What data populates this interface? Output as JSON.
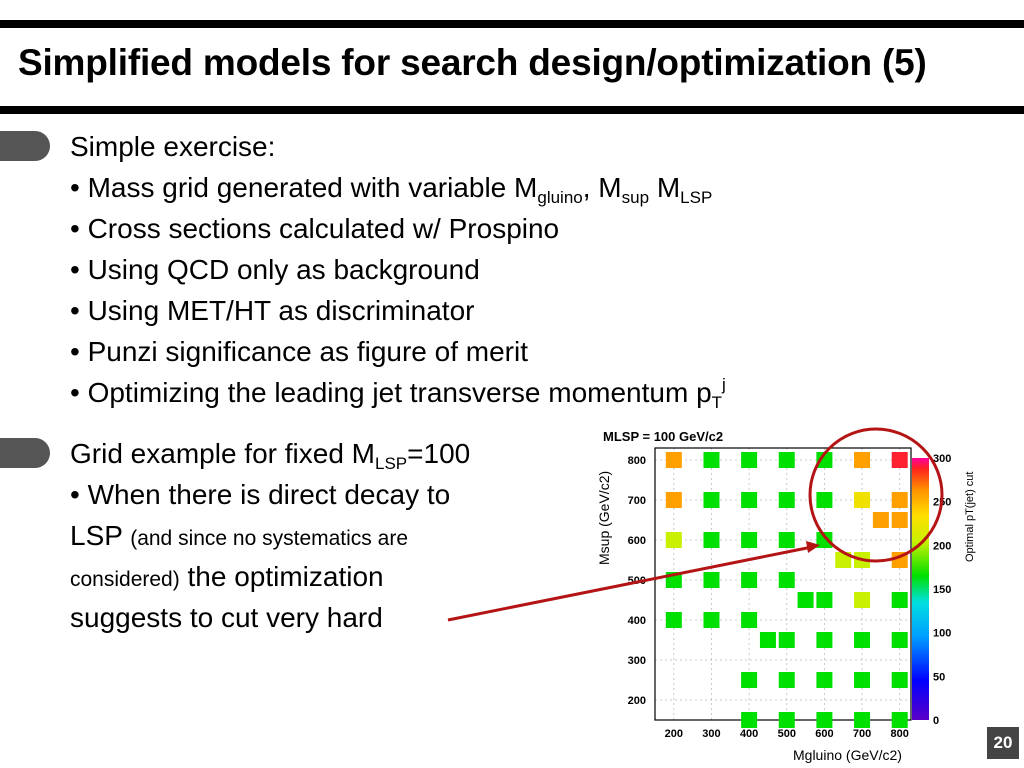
{
  "slide": {
    "title": "Simplified models for search design/optimization (5)",
    "page_number": "20"
  },
  "block1": {
    "heading": "Simple exercise:",
    "bullets": {
      "mass_grid": {
        "text": "• Mass grid generated with variable M",
        "sub1": "gluino",
        "mid": ", M",
        "sub2": "sup",
        "mid2": " M",
        "sub3": "LSP"
      },
      "cross_sections": "• Cross sections calculated w/ Prospino",
      "qcd": "• Using QCD only as background",
      "met_ht": "• Using MET/HT as discriminator",
      "punzi": "• Punzi significance as figure of merit",
      "pt": {
        "text": "• Optimizing the leading jet transverse momentum p",
        "sub": "T",
        "sup": "j"
      }
    }
  },
  "block2": {
    "heading": {
      "text": "Grid example for fixed M",
      "sub": "LSP",
      "tail": "=100"
    },
    "line1": "• When there is direct decay to",
    "line2_main": "LSP ",
    "line2_small": "(and since no systematics are",
    "line3_small": "considered)",
    "line3_main": " the optimization",
    "line4": "suggests to cut very hard"
  },
  "colors": {
    "marker_green": "#00e000",
    "marker_lime": "#c8f000",
    "marker_yellow": "#f0e000",
    "marker_orange": "#ffa000",
    "marker_red": "#ff2030",
    "annotation": "#b41414"
  },
  "chart_data": {
    "type": "heatmap",
    "title": "MLSP = 100 GeV/c2",
    "xlabel": "Mgluino (GeV/c2)",
    "ylabel": "Msup (GeV/c2)",
    "zlabel": "Optimal pT(jet) cut",
    "xlim": [
      150,
      830
    ],
    "ylim": [
      150,
      830
    ],
    "zlim": [
      0,
      300
    ],
    "grid": true,
    "x_ticks": [
      200,
      300,
      400,
      500,
      600,
      700,
      800
    ],
    "y_ticks": [
      200,
      300,
      400,
      500,
      600,
      700,
      800
    ],
    "z_ticks": [
      0,
      50,
      100,
      150,
      200,
      250,
      300
    ],
    "points": [
      {
        "x": 200,
        "y": 800,
        "z": 240
      },
      {
        "x": 300,
        "y": 800,
        "z": 160
      },
      {
        "x": 400,
        "y": 800,
        "z": 160
      },
      {
        "x": 500,
        "y": 800,
        "z": 160
      },
      {
        "x": 600,
        "y": 800,
        "z": 160
      },
      {
        "x": 700,
        "y": 800,
        "z": 240
      },
      {
        "x": 800,
        "y": 800,
        "z": 290
      },
      {
        "x": 200,
        "y": 700,
        "z": 240
      },
      {
        "x": 300,
        "y": 700,
        "z": 160
      },
      {
        "x": 400,
        "y": 700,
        "z": 160
      },
      {
        "x": 500,
        "y": 700,
        "z": 160
      },
      {
        "x": 600,
        "y": 700,
        "z": 160
      },
      {
        "x": 700,
        "y": 700,
        "z": 225
      },
      {
        "x": 800,
        "y": 700,
        "z": 245
      },
      {
        "x": 200,
        "y": 600,
        "z": 210
      },
      {
        "x": 300,
        "y": 600,
        "z": 160
      },
      {
        "x": 400,
        "y": 600,
        "z": 160
      },
      {
        "x": 500,
        "y": 600,
        "z": 160
      },
      {
        "x": 600,
        "y": 600,
        "z": 160
      },
      {
        "x": 750,
        "y": 650,
        "z": 240
      },
      {
        "x": 800,
        "y": 650,
        "z": 245
      },
      {
        "x": 650,
        "y": 550,
        "z": 210
      },
      {
        "x": 700,
        "y": 550,
        "z": 210
      },
      {
        "x": 800,
        "y": 550,
        "z": 230
      },
      {
        "x": 200,
        "y": 500,
        "z": 160
      },
      {
        "x": 300,
        "y": 500,
        "z": 160
      },
      {
        "x": 400,
        "y": 500,
        "z": 160
      },
      {
        "x": 500,
        "y": 500,
        "z": 160
      },
      {
        "x": 550,
        "y": 450,
        "z": 175
      },
      {
        "x": 600,
        "y": 450,
        "z": 160
      },
      {
        "x": 700,
        "y": 450,
        "z": 200
      },
      {
        "x": 800,
        "y": 450,
        "z": 160
      },
      {
        "x": 200,
        "y": 400,
        "z": 160
      },
      {
        "x": 300,
        "y": 400,
        "z": 160
      },
      {
        "x": 400,
        "y": 400,
        "z": 160
      },
      {
        "x": 450,
        "y": 350,
        "z": 160
      },
      {
        "x": 500,
        "y": 350,
        "z": 160
      },
      {
        "x": 600,
        "y": 350,
        "z": 160
      },
      {
        "x": 700,
        "y": 350,
        "z": 160
      },
      {
        "x": 800,
        "y": 350,
        "z": 160
      },
      {
        "x": 400,
        "y": 250,
        "z": 160
      },
      {
        "x": 500,
        "y": 250,
        "z": 160
      },
      {
        "x": 600,
        "y": 250,
        "z": 160
      },
      {
        "x": 700,
        "y": 250,
        "z": 160
      },
      {
        "x": 800,
        "y": 250,
        "z": 160
      },
      {
        "x": 400,
        "y": 150,
        "z": 160
      },
      {
        "x": 500,
        "y": 150,
        "z": 160
      },
      {
        "x": 600,
        "y": 150,
        "z": 160
      },
      {
        "x": 700,
        "y": 150,
        "z": 160
      },
      {
        "x": 800,
        "y": 150,
        "z": 160
      }
    ]
  }
}
